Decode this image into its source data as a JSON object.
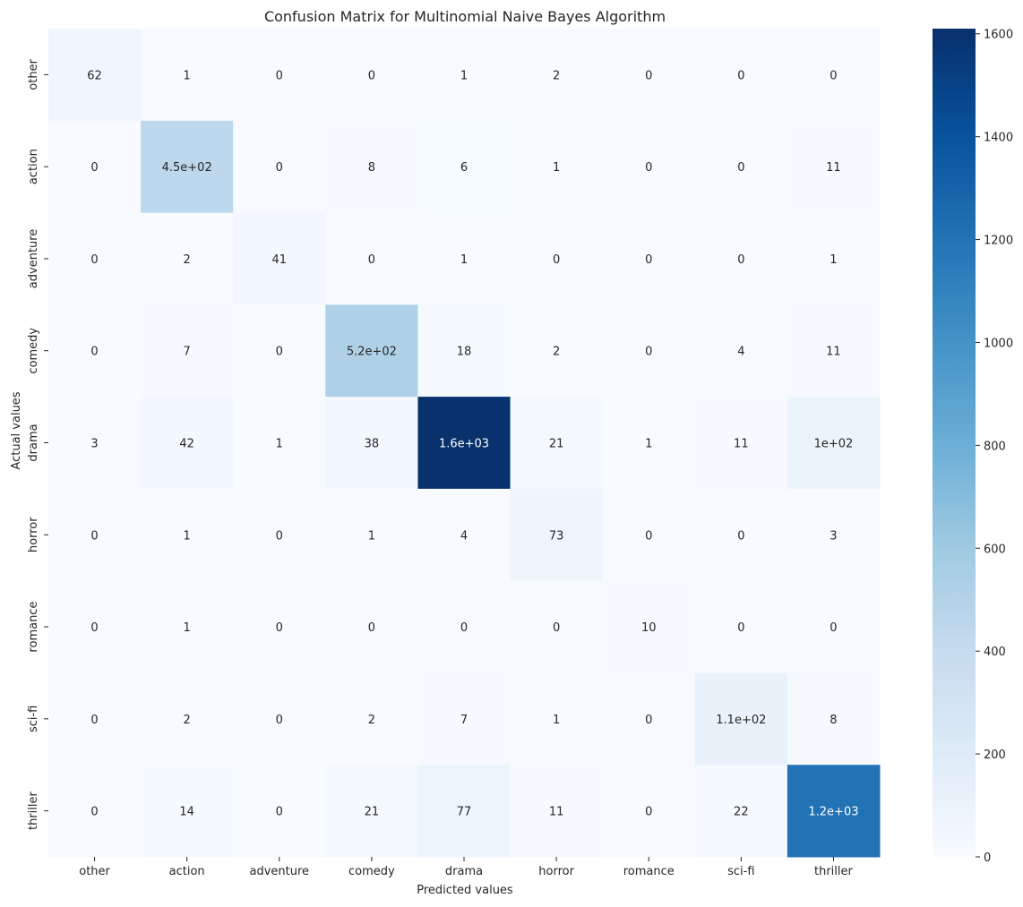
{
  "chart_data": {
    "type": "heatmap",
    "title": "Confusion Matrix for Multinomial Naive Bayes Algorithm",
    "xlabel": "Predicted values",
    "ylabel": "Actual values",
    "x_categories": [
      "other",
      "action",
      "adventure",
      "comedy",
      "drama",
      "horror",
      "romance",
      "sci-fi",
      "thriller"
    ],
    "y_categories": [
      "other",
      "action",
      "adventure",
      "comedy",
      "drama",
      "horror",
      "romance",
      "sci-fi",
      "thriller"
    ],
    "values": [
      [
        62,
        1,
        0,
        0,
        1,
        2,
        0,
        0,
        0
      ],
      [
        0,
        450,
        0,
        8,
        6,
        1,
        0,
        0,
        11
      ],
      [
        0,
        2,
        41,
        0,
        1,
        0,
        0,
        0,
        1
      ],
      [
        0,
        7,
        0,
        520,
        18,
        2,
        0,
        4,
        11
      ],
      [
        3,
        42,
        1,
        38,
        1600,
        21,
        1,
        11,
        100
      ],
      [
        0,
        1,
        0,
        1,
        4,
        73,
        0,
        0,
        3
      ],
      [
        0,
        1,
        0,
        0,
        0,
        0,
        10,
        0,
        0
      ],
      [
        0,
        2,
        0,
        2,
        7,
        1,
        0,
        110,
        8
      ],
      [
        0,
        14,
        0,
        21,
        77,
        11,
        0,
        22,
        1200
      ]
    ],
    "annotations": [
      [
        "62",
        "1",
        "0",
        "0",
        "1",
        "2",
        "0",
        "0",
        "0"
      ],
      [
        "0",
        "4.5e+02",
        "0",
        "8",
        "6",
        "1",
        "0",
        "0",
        "11"
      ],
      [
        "0",
        "2",
        "41",
        "0",
        "1",
        "0",
        "0",
        "0",
        "1"
      ],
      [
        "0",
        "7",
        "0",
        "5.2e+02",
        "18",
        "2",
        "0",
        "4",
        "11"
      ],
      [
        "3",
        "42",
        "1",
        "38",
        "1.6e+03",
        "21",
        "1",
        "11",
        "1e+02"
      ],
      [
        "0",
        "1",
        "0",
        "1",
        "4",
        "73",
        "0",
        "0",
        "3"
      ],
      [
        "0",
        "1",
        "0",
        "0",
        "0",
        "0",
        "10",
        "0",
        "0"
      ],
      [
        "0",
        "2",
        "0",
        "2",
        "7",
        "1",
        "0",
        "1.1e+02",
        "8"
      ],
      [
        "0",
        "14",
        "0",
        "21",
        "77",
        "11",
        "0",
        "22",
        "1.2e+03"
      ]
    ],
    "colormap": "Blues",
    "vmin": 0,
    "vmax": 1610,
    "colorbar_ticks": [
      0,
      200,
      400,
      600,
      800,
      1000,
      1200,
      1400,
      1600
    ],
    "colorbar_tick_labels": [
      "0",
      "200",
      "400",
      "600",
      "800",
      "1000",
      "1200",
      "1400",
      "1600"
    ]
  }
}
